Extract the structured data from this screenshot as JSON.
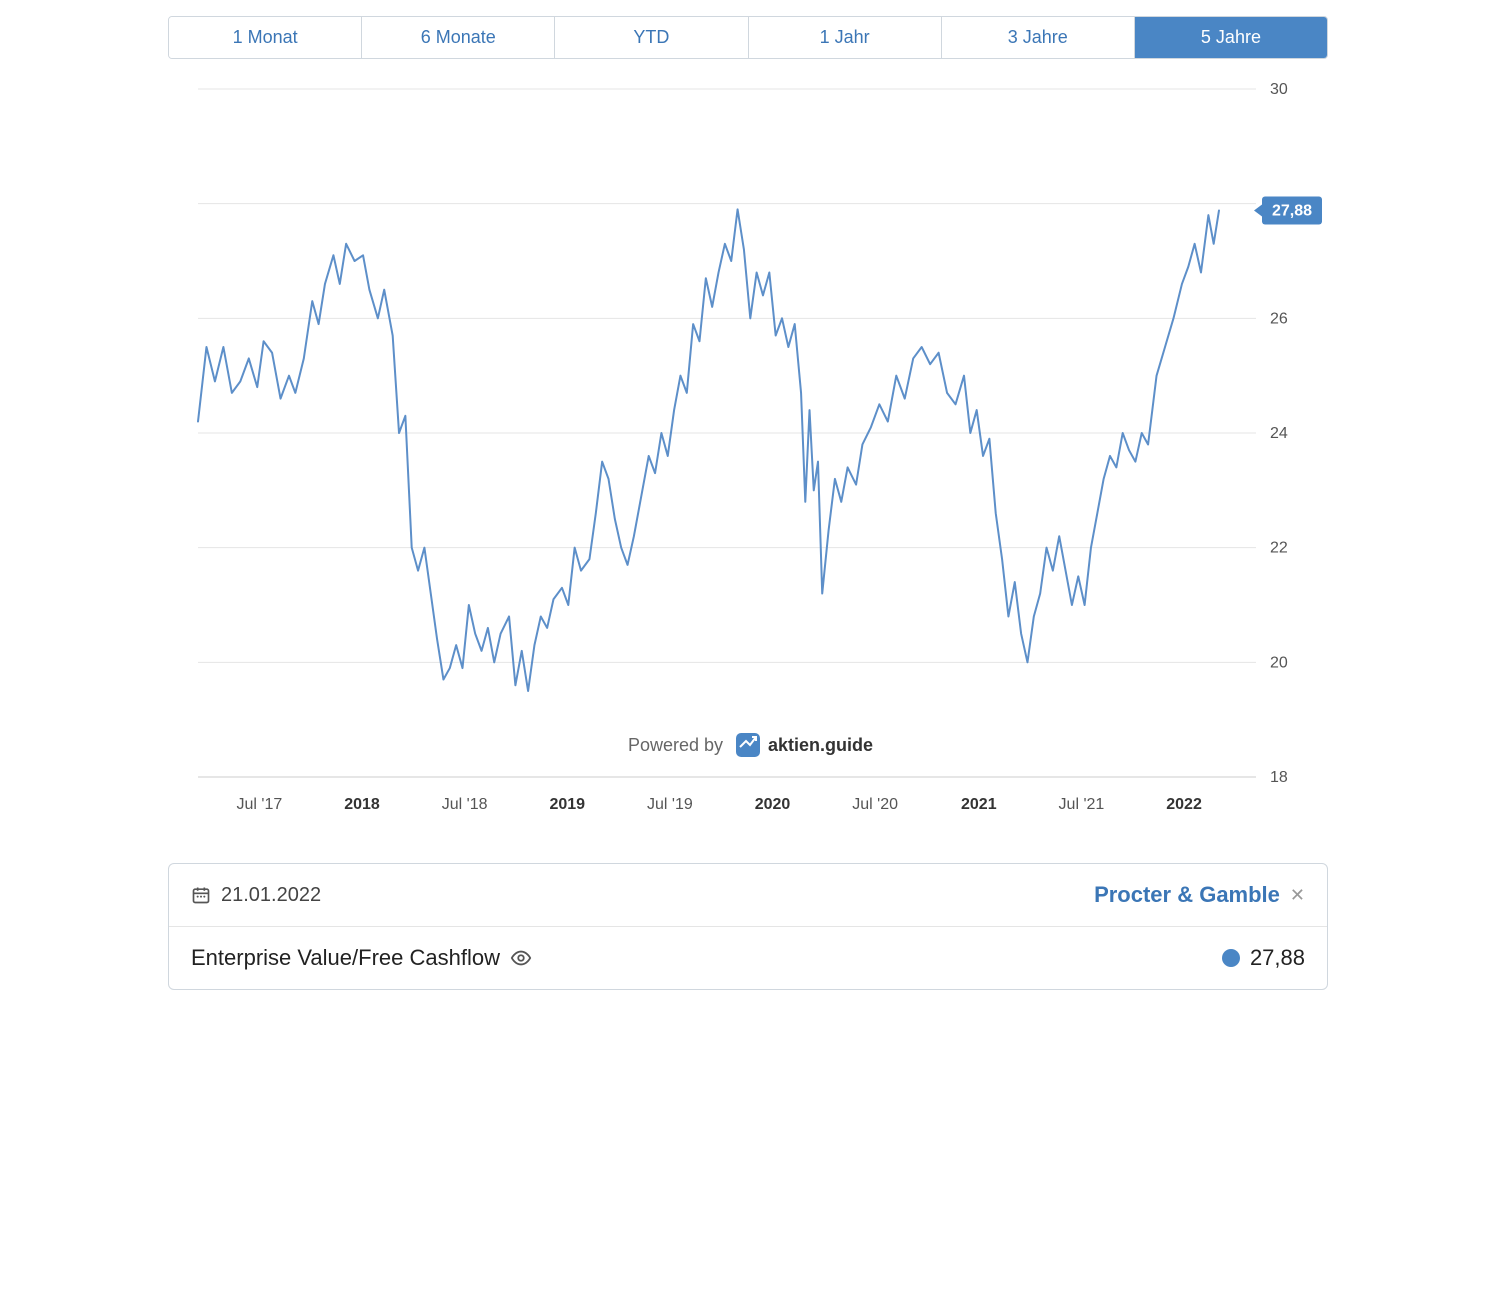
{
  "tabs": [
    {
      "label": "1 Monat",
      "active": false
    },
    {
      "label": "6 Monate",
      "active": false
    },
    {
      "label": "YTD",
      "active": false
    },
    {
      "label": "1 Jahr",
      "active": false
    },
    {
      "label": "3 Jahre",
      "active": false
    },
    {
      "label": "5 Jahre",
      "active": true
    }
  ],
  "chart": {
    "type": "line",
    "series_color": "#5d8fc9",
    "line_width": 2,
    "background": "#ffffff",
    "grid_color": "#e5e5e5",
    "ylim": [
      18,
      30
    ],
    "yticks": [
      18,
      20,
      22,
      24,
      26,
      28,
      30
    ],
    "ylabel_fontsize": 16,
    "ylabel_color": "#555555",
    "xlabels": [
      {
        "t": 0.058,
        "text": "Jul '17",
        "bold": false
      },
      {
        "t": 0.155,
        "text": "2018",
        "bold": true
      },
      {
        "t": 0.252,
        "text": "Jul '18",
        "bold": false
      },
      {
        "t": 0.349,
        "text": "2019",
        "bold": true
      },
      {
        "t": 0.446,
        "text": "Jul '19",
        "bold": false
      },
      {
        "t": 0.543,
        "text": "2020",
        "bold": true
      },
      {
        "t": 0.64,
        "text": "Jul '20",
        "bold": false
      },
      {
        "t": 0.738,
        "text": "2021",
        "bold": true
      },
      {
        "t": 0.835,
        "text": "Jul '21",
        "bold": false
      },
      {
        "t": 0.932,
        "text": "2022",
        "bold": true
      }
    ],
    "xlabel_fontsize": 16,
    "badge": {
      "value": "27,88",
      "bg": "#4a86c5",
      "text": "#ffffff"
    },
    "powered_by": {
      "prefix": "Powered by",
      "brand": "aktien.guide"
    },
    "data": [
      [
        0.0,
        24.2
      ],
      [
        0.008,
        25.5
      ],
      [
        0.016,
        24.9
      ],
      [
        0.024,
        25.5
      ],
      [
        0.032,
        24.7
      ],
      [
        0.04,
        24.9
      ],
      [
        0.048,
        25.3
      ],
      [
        0.056,
        24.8
      ],
      [
        0.062,
        25.6
      ],
      [
        0.07,
        25.4
      ],
      [
        0.078,
        24.6
      ],
      [
        0.086,
        25.0
      ],
      [
        0.092,
        24.7
      ],
      [
        0.1,
        25.3
      ],
      [
        0.108,
        26.3
      ],
      [
        0.114,
        25.9
      ],
      [
        0.12,
        26.6
      ],
      [
        0.128,
        27.1
      ],
      [
        0.134,
        26.6
      ],
      [
        0.14,
        27.3
      ],
      [
        0.148,
        27.0
      ],
      [
        0.156,
        27.1
      ],
      [
        0.162,
        26.5
      ],
      [
        0.17,
        26.0
      ],
      [
        0.176,
        26.5
      ],
      [
        0.184,
        25.7
      ],
      [
        0.19,
        24.0
      ],
      [
        0.196,
        24.3
      ],
      [
        0.202,
        22.0
      ],
      [
        0.208,
        21.6
      ],
      [
        0.214,
        22.0
      ],
      [
        0.22,
        21.2
      ],
      [
        0.226,
        20.4
      ],
      [
        0.232,
        19.7
      ],
      [
        0.238,
        19.9
      ],
      [
        0.244,
        20.3
      ],
      [
        0.25,
        19.9
      ],
      [
        0.256,
        21.0
      ],
      [
        0.262,
        20.5
      ],
      [
        0.268,
        20.2
      ],
      [
        0.274,
        20.6
      ],
      [
        0.28,
        20.0
      ],
      [
        0.286,
        20.5
      ],
      [
        0.294,
        20.8
      ],
      [
        0.3,
        19.6
      ],
      [
        0.306,
        20.2
      ],
      [
        0.312,
        19.5
      ],
      [
        0.318,
        20.3
      ],
      [
        0.324,
        20.8
      ],
      [
        0.33,
        20.6
      ],
      [
        0.336,
        21.1
      ],
      [
        0.344,
        21.3
      ],
      [
        0.35,
        21.0
      ],
      [
        0.356,
        22.0
      ],
      [
        0.362,
        21.6
      ],
      [
        0.37,
        21.8
      ],
      [
        0.376,
        22.6
      ],
      [
        0.382,
        23.5
      ],
      [
        0.388,
        23.2
      ],
      [
        0.394,
        22.5
      ],
      [
        0.4,
        22.0
      ],
      [
        0.406,
        21.7
      ],
      [
        0.412,
        22.2
      ],
      [
        0.42,
        23.0
      ],
      [
        0.426,
        23.6
      ],
      [
        0.432,
        23.3
      ],
      [
        0.438,
        24.0
      ],
      [
        0.444,
        23.6
      ],
      [
        0.45,
        24.4
      ],
      [
        0.456,
        25.0
      ],
      [
        0.462,
        24.7
      ],
      [
        0.468,
        25.9
      ],
      [
        0.474,
        25.6
      ],
      [
        0.48,
        26.7
      ],
      [
        0.486,
        26.2
      ],
      [
        0.492,
        26.8
      ],
      [
        0.498,
        27.3
      ],
      [
        0.504,
        27.0
      ],
      [
        0.51,
        27.9
      ],
      [
        0.516,
        27.2
      ],
      [
        0.522,
        26.0
      ],
      [
        0.528,
        26.8
      ],
      [
        0.534,
        26.4
      ],
      [
        0.54,
        26.8
      ],
      [
        0.546,
        25.7
      ],
      [
        0.552,
        26.0
      ],
      [
        0.558,
        25.5
      ],
      [
        0.564,
        25.9
      ],
      [
        0.57,
        24.7
      ],
      [
        0.574,
        22.8
      ],
      [
        0.578,
        24.4
      ],
      [
        0.582,
        23.0
      ],
      [
        0.586,
        23.5
      ],
      [
        0.59,
        21.2
      ],
      [
        0.596,
        22.3
      ],
      [
        0.602,
        23.2
      ],
      [
        0.608,
        22.8
      ],
      [
        0.614,
        23.4
      ],
      [
        0.622,
        23.1
      ],
      [
        0.628,
        23.8
      ],
      [
        0.636,
        24.1
      ],
      [
        0.644,
        24.5
      ],
      [
        0.652,
        24.2
      ],
      [
        0.66,
        25.0
      ],
      [
        0.668,
        24.6
      ],
      [
        0.676,
        25.3
      ],
      [
        0.684,
        25.5
      ],
      [
        0.692,
        25.2
      ],
      [
        0.7,
        25.4
      ],
      [
        0.708,
        24.7
      ],
      [
        0.716,
        24.5
      ],
      [
        0.724,
        25.0
      ],
      [
        0.73,
        24.0
      ],
      [
        0.736,
        24.4
      ],
      [
        0.742,
        23.6
      ],
      [
        0.748,
        23.9
      ],
      [
        0.754,
        22.6
      ],
      [
        0.76,
        21.8
      ],
      [
        0.766,
        20.8
      ],
      [
        0.772,
        21.4
      ],
      [
        0.778,
        20.5
      ],
      [
        0.784,
        20.0
      ],
      [
        0.79,
        20.8
      ],
      [
        0.796,
        21.2
      ],
      [
        0.802,
        22.0
      ],
      [
        0.808,
        21.6
      ],
      [
        0.814,
        22.2
      ],
      [
        0.82,
        21.6
      ],
      [
        0.826,
        21.0
      ],
      [
        0.832,
        21.5
      ],
      [
        0.838,
        21.0
      ],
      [
        0.844,
        22.0
      ],
      [
        0.85,
        22.6
      ],
      [
        0.856,
        23.2
      ],
      [
        0.862,
        23.6
      ],
      [
        0.868,
        23.4
      ],
      [
        0.874,
        24.0
      ],
      [
        0.88,
        23.7
      ],
      [
        0.886,
        23.5
      ],
      [
        0.892,
        24.0
      ],
      [
        0.898,
        23.8
      ],
      [
        0.906,
        25.0
      ],
      [
        0.914,
        25.5
      ],
      [
        0.922,
        26.0
      ],
      [
        0.93,
        26.6
      ],
      [
        0.936,
        26.9
      ],
      [
        0.942,
        27.3
      ],
      [
        0.948,
        26.8
      ],
      [
        0.955,
        27.8
      ],
      [
        0.96,
        27.3
      ],
      [
        0.965,
        27.88
      ]
    ]
  },
  "card": {
    "date": "21.01.2022",
    "company": "Procter & Gamble",
    "metric_label": "Enterprise Value/Free Cashflow",
    "metric_value": "27,88",
    "dot_color": "#4a86c5"
  }
}
